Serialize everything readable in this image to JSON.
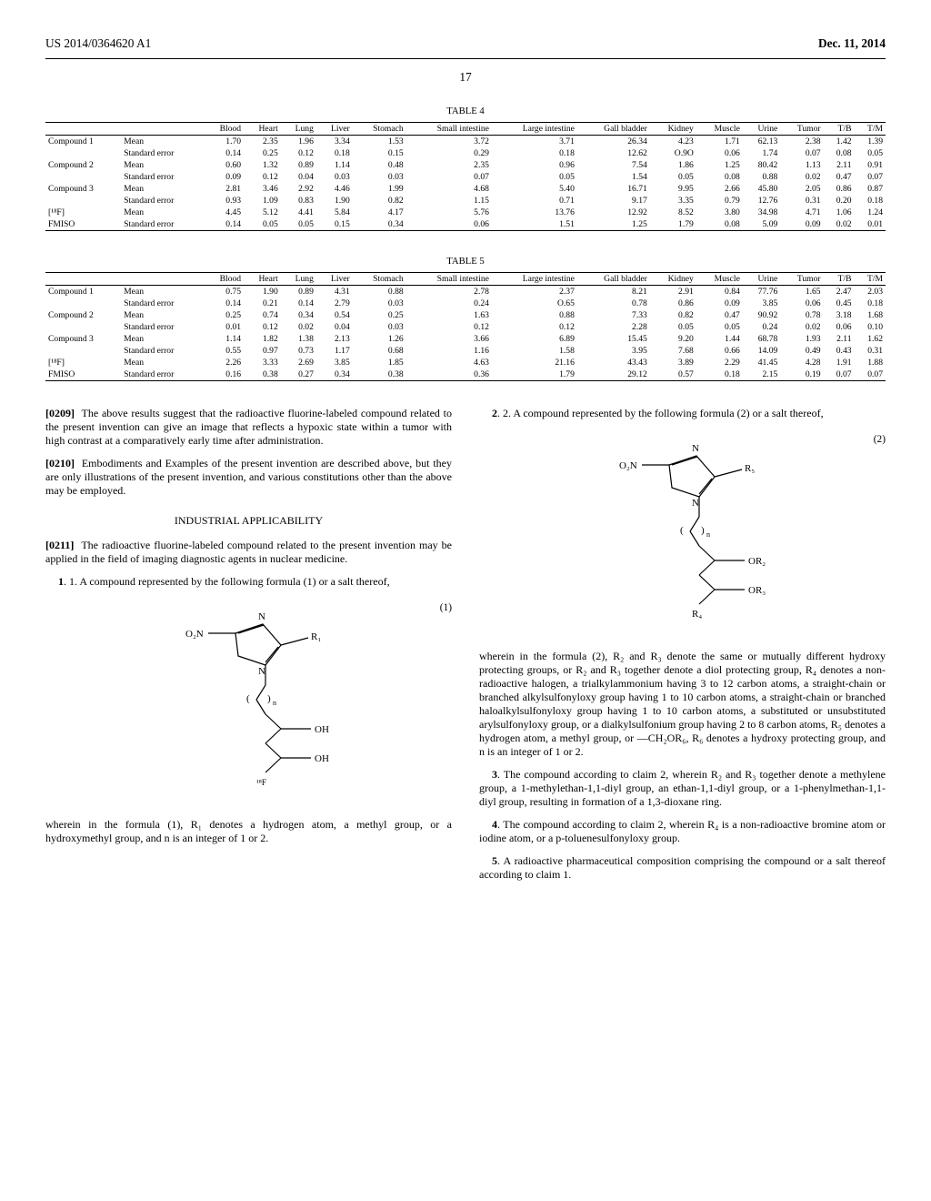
{
  "header": {
    "left": "US 2014/0364620 A1",
    "right": "Dec. 11, 2014"
  },
  "page_number": "17",
  "tables": {
    "t4": {
      "caption": "TABLE 4",
      "columns": [
        "",
        "",
        "Blood",
        "Heart",
        "Lung",
        "Liver",
        "Stomach",
        "Small intestine",
        "Large intestine",
        "Gall bladder",
        "Kidney",
        "Muscle",
        "Urine",
        "Tumor",
        "T/B",
        "T/M"
      ],
      "rows": [
        [
          "Compound 1",
          "Mean",
          "1.70",
          "2.35",
          "1.96",
          "3.34",
          "1.53",
          "3.72",
          "3.71",
          "26.34",
          "4.23",
          "1.71",
          "62.13",
          "2.38",
          "1.42",
          "1.39"
        ],
        [
          "",
          "Standard error",
          "0.14",
          "0.25",
          "0.12",
          "0.18",
          "0.15",
          "0.29",
          "0.18",
          "12.62",
          "O.9O",
          "0.06",
          "1.74",
          "0.07",
          "0.08",
          "0.05"
        ],
        [
          "Compound 2",
          "Mean",
          "0.60",
          "1.32",
          "0.89",
          "1.14",
          "0.48",
          "2.35",
          "0.96",
          "7.54",
          "1.86",
          "1.25",
          "80.42",
          "1.13",
          "2.11",
          "0.91"
        ],
        [
          "",
          "Standard error",
          "0.09",
          "0.12",
          "0.04",
          "0.03",
          "0.03",
          "0.07",
          "0.05",
          "1.54",
          "0.05",
          "0.08",
          "0.88",
          "0.02",
          "0.47",
          "0.07"
        ],
        [
          "Compound 3",
          "Mean",
          "2.81",
          "3.46",
          "2.92",
          "4.46",
          "1.99",
          "4.68",
          "5.40",
          "16.71",
          "9.95",
          "2.66",
          "45.80",
          "2.05",
          "0.86",
          "0.87"
        ],
        [
          "",
          "Standard error",
          "0.93",
          "1.09",
          "0.83",
          "1.90",
          "0.82",
          "1.15",
          "0.71",
          "9.17",
          "3.35",
          "0.79",
          "12.76",
          "0.31",
          "0.20",
          "0.18"
        ],
        [
          "[¹⁸F]",
          "Mean",
          "4.45",
          "5.12",
          "4.41",
          "5.84",
          "4.17",
          "5.76",
          "13.76",
          "12.92",
          "8.52",
          "3.80",
          "34.98",
          "4.71",
          "1.06",
          "1.24"
        ],
        [
          "FMISO",
          "Standard error",
          "0.14",
          "0.05",
          "0.05",
          "0.15",
          "0.34",
          "0.06",
          "1.51",
          "1.25",
          "1.79",
          "0.08",
          "5.09",
          "0.09",
          "0.02",
          "0.01"
        ]
      ]
    },
    "t5": {
      "caption": "TABLE 5",
      "columns": [
        "",
        "",
        "Blood",
        "Heart",
        "Lung",
        "Liver",
        "Stomach",
        "Small intestine",
        "Large intestine",
        "Gall bladder",
        "Kidney",
        "Muscle",
        "Urine",
        "Tumor",
        "T/B",
        "T/M"
      ],
      "rows": [
        [
          "Compound 1",
          "Mean",
          "0.75",
          "1.90",
          "0.89",
          "4.31",
          "0.88",
          "2.78",
          "2.37",
          "8.21",
          "2.91",
          "0.84",
          "77.76",
          "1.65",
          "2.47",
          "2.03"
        ],
        [
          "",
          "Standard error",
          "0.14",
          "0.21",
          "0.14",
          "2.79",
          "0.03",
          "0.24",
          "O.65",
          "0.78",
          "0.86",
          "0.09",
          "3.85",
          "0.06",
          "0.45",
          "0.18"
        ],
        [
          "Compound 2",
          "Mean",
          "0.25",
          "0.74",
          "0.34",
          "0.54",
          "0.25",
          "1.63",
          "0.88",
          "7.33",
          "0.82",
          "0.47",
          "90.92",
          "0.78",
          "3.18",
          "1.68"
        ],
        [
          "",
          "Standard error",
          "0.01",
          "0.12",
          "0.02",
          "0.04",
          "0.03",
          "0.12",
          "0.12",
          "2.28",
          "0.05",
          "0.05",
          "0.24",
          "0.02",
          "0.06",
          "0.10"
        ],
        [
          "Compound 3",
          "Mean",
          "1.14",
          "1.82",
          "1.38",
          "2.13",
          "1.26",
          "3.66",
          "6.89",
          "15.45",
          "9.20",
          "1.44",
          "68.78",
          "1.93",
          "2.11",
          "1.62"
        ],
        [
          "",
          "Standard error",
          "0.55",
          "0.97",
          "0.73",
          "1.17",
          "0.68",
          "1.16",
          "1.58",
          "3.95",
          "7.68",
          "0.66",
          "14.09",
          "0.49",
          "0.43",
          "0.31"
        ],
        [
          "[¹⁸F]",
          "Mean",
          "2.26",
          "3.33",
          "2.69",
          "3.85",
          "1.85",
          "4.63",
          "21.16",
          "43.43",
          "3.89",
          "2.29",
          "41.45",
          "4.28",
          "1.91",
          "1.88"
        ],
        [
          "FMISO",
          "Standard error",
          "0.16",
          "0.38",
          "0.27",
          "0.34",
          "0.38",
          "0.36",
          "1.79",
          "29.12",
          "0.57",
          "0.18",
          "2.15",
          "0.19",
          "0.07",
          "0.07"
        ]
      ]
    }
  },
  "paragraphs": {
    "p0209": "The above results suggest that the radioactive fluorine-labeled compound related to the present invention can give an image that reflects a hypoxic state within a tumor with high contrast at a comparatively early time after administration.",
    "p0210": "Embodiments and Examples of the present invention are described above, but they are only illustrations of the present invention, and various constitutions other than the above may be employed.",
    "industrial_title": "INDUSTRIAL APPLICABILITY",
    "p0211": "The radioactive fluorine-labeled compound related to the present invention may be applied in the field of imaging diagnostic agents in nuclear medicine."
  },
  "claims": {
    "c1_lead": "1. A compound represented by the following formula (1) or a salt thereof,",
    "c1_eqnum": "(1)",
    "c1_wherein": "wherein in the formula (1), R₁ denotes a hydrogen atom, a methyl group, or a hydroxymethyl group, and n is an integer of 1 or 2.",
    "c2_lead": "2. A compound represented by the following formula (2) or a salt thereof,",
    "c2_eqnum": "(2)",
    "c2_wherein": "wherein in the formula (2), R₂ and R₃ denote the same or mutually different hydroxy protecting groups, or R₂ and R₃ together denote a diol protecting group, R₄ denotes a non-radioactive halogen, a trialkylammonium having 3 to 12 carbon atoms, a straight-chain or branched alkylsulfonyloxy group having 1 to 10 carbon atoms, a straight-chain or branched haloalkylsulfonyloxy group having 1 to 10 carbon atoms, a substituted or unsubstituted arylsulfonyloxy group, or a dialkylsulfonium group having 2 to 8 carbon atoms, R₅ denotes a hydrogen atom, a methyl group, or —CH₂OR₆, R₆ denotes a hydroxy protecting group, and n is an integer of 1 or 2.",
    "c3": "3. The compound according to claim 2, wherein R₂ and R₃ together denote a methylene group, a 1-methylethan-1,1-diyl group, an ethan-1,1-diyl group, or a 1-phenylmethan-1,1-diyl group, resulting in formation of a 1,3-dioxane ring.",
    "c4": "4. The compound according to claim 2, wherein R₄ is a non-radioactive bromine atom or iodine atom, or a p-toluenesulfonyloxy group.",
    "c5": "5. A radioactive pharmaceutical composition comprising the compound or a salt thereof according to claim 1."
  },
  "chem": {
    "labels1": {
      "o2n": "O₂N",
      "n1": "N",
      "n2": "N",
      "r1": "R₁",
      "paren_l": "(",
      "paren_r": ")",
      "sub_n": "n",
      "oh1": "OH",
      "oh2": "OH",
      "f18": "¹⁸F"
    },
    "labels2": {
      "o2n": "O₂N",
      "n1": "N",
      "n2": "N",
      "r5": "R₅",
      "paren_l": "(",
      "paren_r": ")",
      "sub_n": "n",
      "or2": "OR₂",
      "or3": "OR₃",
      "r4": "R₄"
    }
  }
}
